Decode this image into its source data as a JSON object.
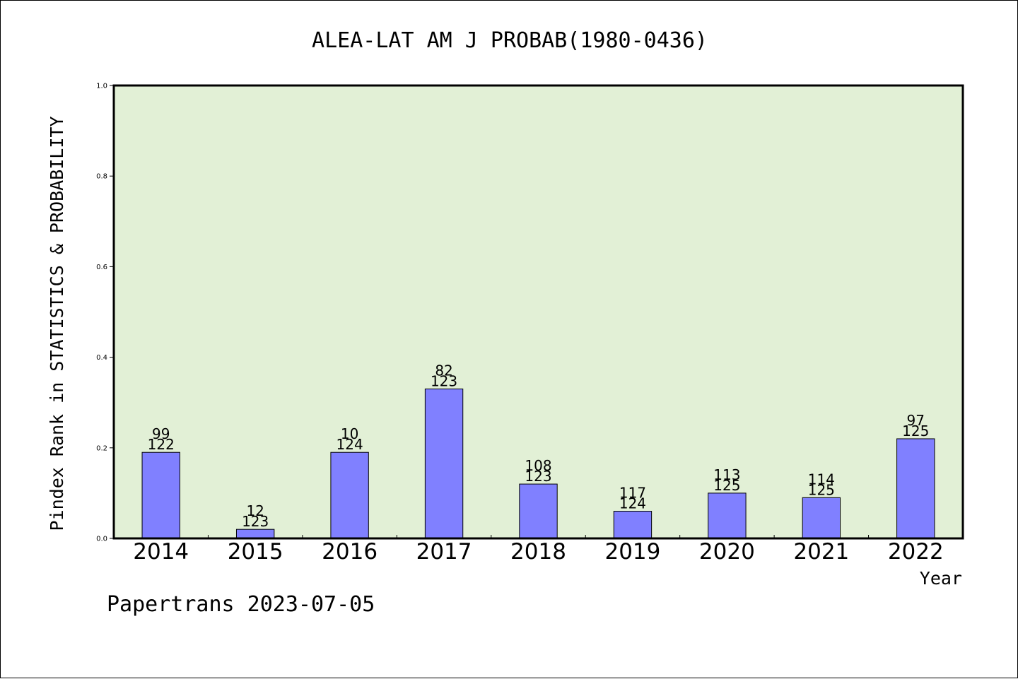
{
  "chart_data": {
    "type": "bar",
    "title": "ALEA-LAT AM J PROBAB(1980-0436)",
    "xlabel": "Year",
    "ylabel": "Pindex Rank in STATISTICS & PROBABILITY",
    "ylim": [
      0,
      1.0
    ],
    "yticks": [
      "0.0",
      "0.2",
      "0.4",
      "0.6",
      "0.8",
      "1.0"
    ],
    "grid": false,
    "colors": {
      "plot_bg": "#e2f0d6",
      "bar": "#8080ff",
      "axis": "#000000"
    },
    "categories": [
      "2014",
      "2015",
      "2016",
      "2017",
      "2018",
      "2019",
      "2020",
      "2021",
      "2022"
    ],
    "values": [
      0.19,
      0.02,
      0.19,
      0.33,
      0.12,
      0.06,
      0.1,
      0.09,
      0.22
    ],
    "ranks": [
      "99",
      "12",
      "10",
      "82",
      "108",
      "117",
      "113",
      "114",
      "97"
    ],
    "totals": [
      "122",
      "123",
      "124",
      "123",
      "123",
      "124",
      "125",
      "125",
      "125"
    ]
  },
  "footer": {
    "text": "Papertrans 2023-07-05"
  }
}
